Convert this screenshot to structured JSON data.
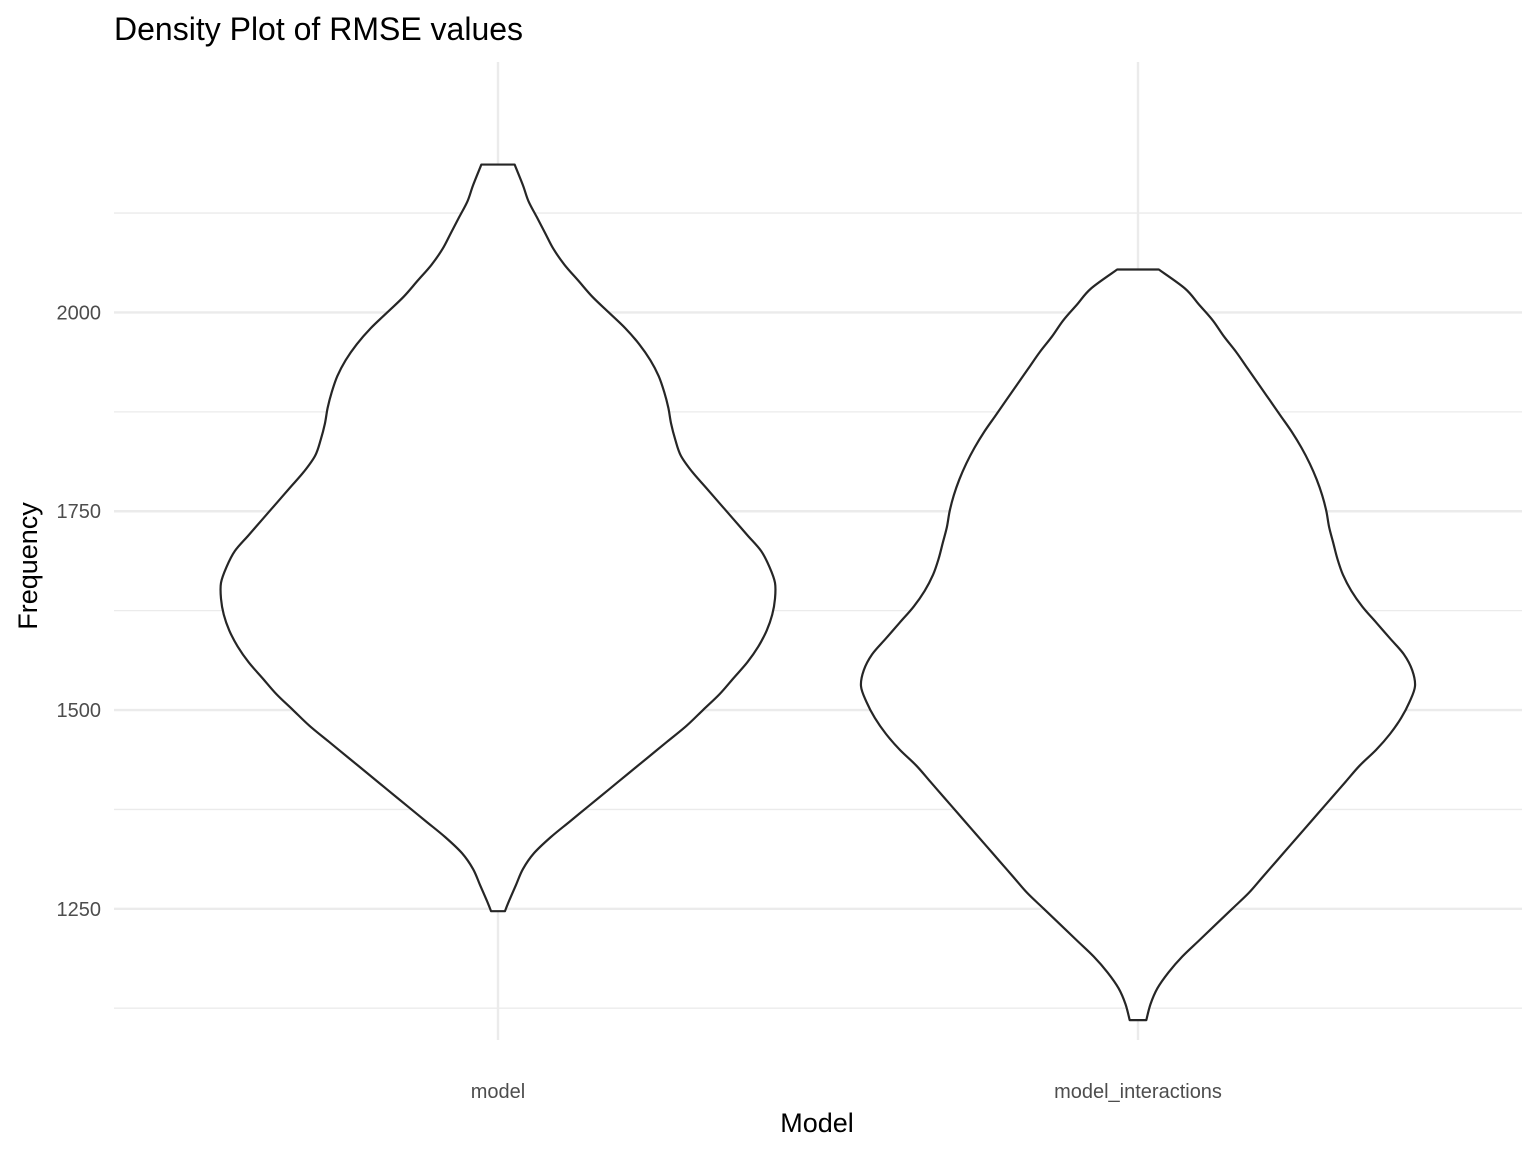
{
  "chart_data": {
    "type": "violin",
    "title": "Density Plot of RMSE values",
    "xlabel": "Model",
    "ylabel": "Frequency",
    "categories": [
      "model",
      "model_interactions"
    ],
    "y_ticks": [
      1250,
      1500,
      1750,
      2000
    ],
    "ylim": [
      1085,
      2315
    ],
    "grid": true,
    "series": [
      {
        "category": "model",
        "min": 1247,
        "max": 2186,
        "profile": [
          [
            1247,
            0.025
          ],
          [
            1260,
            0.04
          ],
          [
            1280,
            0.065
          ],
          [
            1300,
            0.09
          ],
          [
            1320,
            0.13
          ],
          [
            1340,
            0.19
          ],
          [
            1360,
            0.26
          ],
          [
            1380,
            0.33
          ],
          [
            1400,
            0.4
          ],
          [
            1420,
            0.47
          ],
          [
            1440,
            0.54
          ],
          [
            1460,
            0.61
          ],
          [
            1480,
            0.68
          ],
          [
            1500,
            0.74
          ],
          [
            1520,
            0.8
          ],
          [
            1540,
            0.85
          ],
          [
            1560,
            0.9
          ],
          [
            1580,
            0.94
          ],
          [
            1600,
            0.97
          ],
          [
            1620,
            0.99
          ],
          [
            1640,
            1.0
          ],
          [
            1660,
            1.0
          ],
          [
            1680,
            0.98
          ],
          [
            1700,
            0.95
          ],
          [
            1720,
            0.9
          ],
          [
            1740,
            0.85
          ],
          [
            1760,
            0.8
          ],
          [
            1780,
            0.75
          ],
          [
            1800,
            0.7
          ],
          [
            1820,
            0.66
          ],
          [
            1840,
            0.64
          ],
          [
            1860,
            0.625
          ],
          [
            1880,
            0.615
          ],
          [
            1900,
            0.6
          ],
          [
            1920,
            0.58
          ],
          [
            1940,
            0.55
          ],
          [
            1960,
            0.51
          ],
          [
            1980,
            0.46
          ],
          [
            2000,
            0.4
          ],
          [
            2020,
            0.34
          ],
          [
            2040,
            0.29
          ],
          [
            2060,
            0.24
          ],
          [
            2080,
            0.2
          ],
          [
            2100,
            0.17
          ],
          [
            2120,
            0.14
          ],
          [
            2140,
            0.11
          ],
          [
            2160,
            0.09
          ],
          [
            2186,
            0.06
          ]
        ]
      },
      {
        "category": "model_interactions",
        "min": 1110,
        "max": 2054,
        "profile": [
          [
            1110,
            0.03
          ],
          [
            1130,
            0.045
          ],
          [
            1150,
            0.07
          ],
          [
            1170,
            0.11
          ],
          [
            1190,
            0.16
          ],
          [
            1210,
            0.22
          ],
          [
            1230,
            0.28
          ],
          [
            1250,
            0.34
          ],
          [
            1270,
            0.4
          ],
          [
            1290,
            0.45
          ],
          [
            1310,
            0.5
          ],
          [
            1330,
            0.55
          ],
          [
            1350,
            0.6
          ],
          [
            1370,
            0.65
          ],
          [
            1390,
            0.7
          ],
          [
            1410,
            0.75
          ],
          [
            1430,
            0.8
          ],
          [
            1450,
            0.86
          ],
          [
            1470,
            0.91
          ],
          [
            1490,
            0.95
          ],
          [
            1510,
            0.98
          ],
          [
            1530,
            1.0
          ],
          [
            1550,
            0.99
          ],
          [
            1570,
            0.96
          ],
          [
            1590,
            0.91
          ],
          [
            1610,
            0.86
          ],
          [
            1630,
            0.81
          ],
          [
            1650,
            0.77
          ],
          [
            1670,
            0.74
          ],
          [
            1690,
            0.72
          ],
          [
            1710,
            0.705
          ],
          [
            1730,
            0.69
          ],
          [
            1750,
            0.68
          ],
          [
            1770,
            0.665
          ],
          [
            1790,
            0.645
          ],
          [
            1810,
            0.62
          ],
          [
            1830,
            0.59
          ],
          [
            1850,
            0.555
          ],
          [
            1870,
            0.515
          ],
          [
            1890,
            0.475
          ],
          [
            1910,
            0.435
          ],
          [
            1930,
            0.395
          ],
          [
            1950,
            0.355
          ],
          [
            1970,
            0.31
          ],
          [
            1990,
            0.27
          ],
          [
            2010,
            0.22
          ],
          [
            2030,
            0.17
          ],
          [
            2054,
            0.075
          ]
        ]
      }
    ]
  }
}
